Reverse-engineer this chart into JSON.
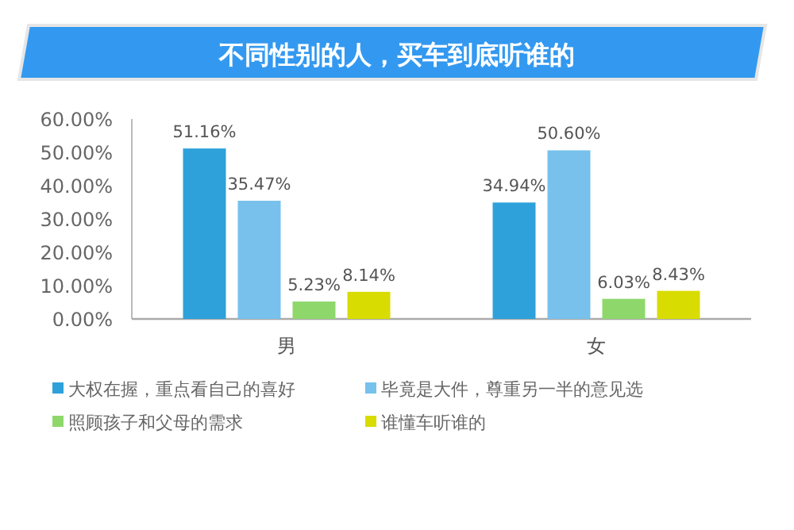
{
  "chart_data": {
    "type": "bar",
    "title": "不同性别的人，买车到底听谁的",
    "categories": [
      "男",
      "女"
    ],
    "series": [
      {
        "name": "大权在握，重点看自己的喜好",
        "color": "#2ea1da",
        "values": [
          51.16,
          34.94
        ],
        "value_labels": [
          "51.16%",
          "34.94%"
        ]
      },
      {
        "name": "毕竟是大件，尊重另一半的意见选",
        "color": "#77c1ec",
        "values": [
          35.47,
          50.6
        ],
        "value_labels": [
          "35.47%",
          "50.60%"
        ]
      },
      {
        "name": "照顾孩子和父母的需求",
        "color": "#8ed86b",
        "values": [
          5.23,
          6.03
        ],
        "value_labels": [
          "5.23%",
          "6.03%"
        ]
      },
      {
        "name": "谁懂车听谁的",
        "color": "#d9dc00",
        "values": [
          8.14,
          8.43
        ],
        "value_labels": [
          "8.14%",
          "8.43%"
        ]
      }
    ],
    "ylim": [
      0,
      60
    ],
    "yticks": [
      {
        "value": 0,
        "label": "0.00%"
      },
      {
        "value": 10,
        "label": "10.00%"
      },
      {
        "value": 20,
        "label": "20.00%"
      },
      {
        "value": 30,
        "label": "30.00%"
      },
      {
        "value": 40,
        "label": "40.00%"
      },
      {
        "value": 50,
        "label": "50.00%"
      },
      {
        "value": 60,
        "label": "60.00%"
      }
    ],
    "grid": false,
    "legend": "bottom"
  }
}
